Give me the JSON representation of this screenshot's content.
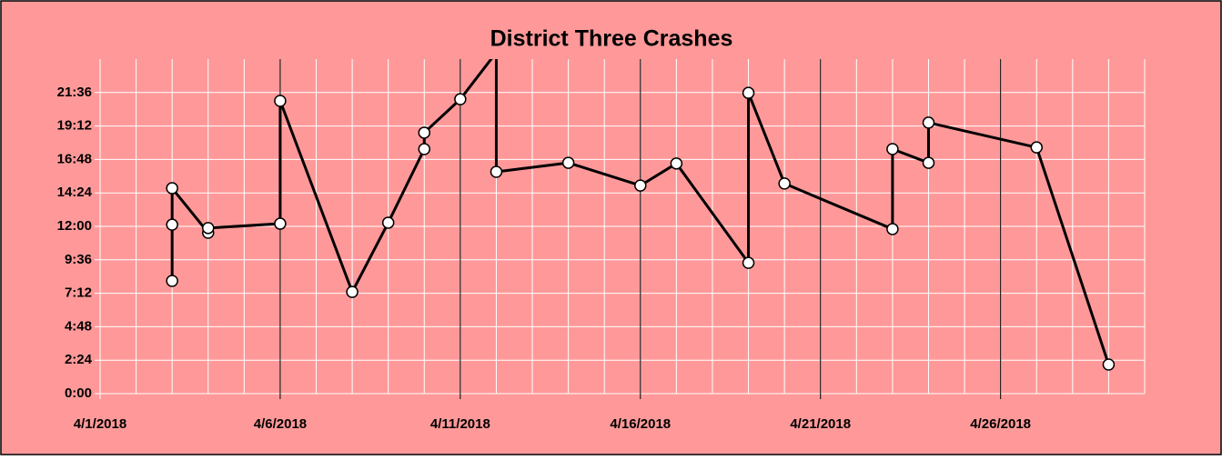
{
  "chart_data": {
    "type": "line",
    "title": "District Three Crashes",
    "x": [
      "4/3/2018",
      "4/3/2018",
      "4/3/2018",
      "4/4/2018",
      "4/4/2018",
      "4/6/2018",
      "4/6/2018",
      "4/8/2018",
      "4/9/2018",
      "4/10/2018",
      "4/10/2018",
      "4/11/2018",
      "4/12/2018",
      "4/12/2018",
      "4/14/2018",
      "4/16/2018",
      "4/17/2018",
      "4/19/2018",
      "4/19/2018",
      "4/20/2018",
      "4/23/2018",
      "4/23/2018",
      "4/24/2018",
      "4/24/2018",
      "4/27/2018",
      "4/29/2018"
    ],
    "series": [
      {
        "color": "#000000",
        "values": [
          0.337,
          0.505,
          0.614,
          0.481,
          0.495,
          0.508,
          0.875,
          0.304,
          0.511,
          0.731,
          0.78,
          0.88,
          1.02,
          0.663,
          0.69,
          0.622,
          0.688,
          0.391,
          0.899,
          0.628,
          0.492,
          0.731,
          0.69,
          0.81,
          0.736,
          0.087
        ]
      }
    ],
    "xlim": [
      "4/1/2018",
      "4/30/2018"
    ],
    "xticks": [
      {
        "value": "4/1/2018",
        "label": "4/1/2018"
      },
      {
        "value": "4/6/2018",
        "label": "4/6/2018"
      },
      {
        "value": "4/11/2018",
        "label": "4/11/2018"
      },
      {
        "value": "4/16/2018",
        "label": "4/16/2018"
      },
      {
        "value": "4/21/2018",
        "label": "4/21/2018"
      },
      {
        "value": "4/26/2018",
        "label": "4/26/2018"
      }
    ],
    "ylim": [
      0,
      1
    ],
    "yticks": [
      {
        "value": 0,
        "label": "0:00"
      },
      {
        "value": 0.1,
        "label": "2:24"
      },
      {
        "value": 0.2,
        "label": "4:48"
      },
      {
        "value": 0.3,
        "label": "7:12"
      },
      {
        "value": 0.4,
        "label": "9:36"
      },
      {
        "value": 0.5,
        "label": "12:00"
      },
      {
        "value": 0.6,
        "label": "14:24"
      },
      {
        "value": 0.7,
        "label": "16:48"
      },
      {
        "value": 0.8,
        "label": "19:12"
      },
      {
        "value": 0.9,
        "label": "21:36"
      }
    ],
    "grid": true,
    "background": "#ff9999",
    "marker_color": "#ffffff"
  }
}
